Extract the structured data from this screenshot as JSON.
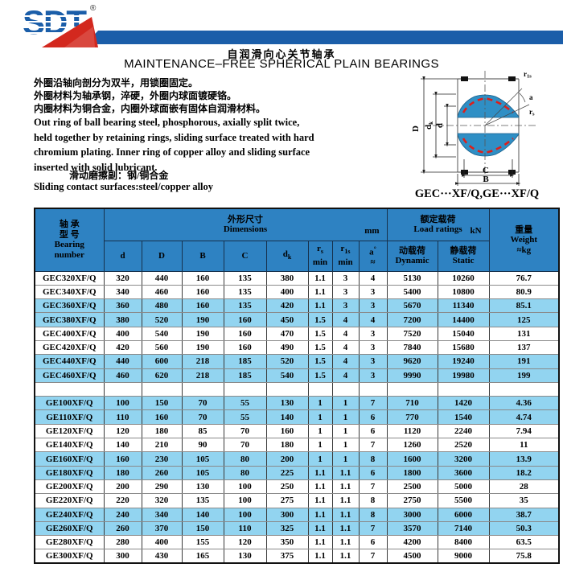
{
  "colors": {
    "bar_blue": "#1b5ea9",
    "header_blue": "#2e82c2",
    "row_highlight_blue": "#92d4f0",
    "logo_red": "#d3281e",
    "diagram_blue": "#2f8fc5",
    "lubricant_red": "#dd1f1a"
  },
  "logo": {
    "text": "SDT",
    "reg": "®"
  },
  "title": {
    "zh": "自润滑向心关节轴承",
    "en": "MAINTENANCE–FREE SPHERICAL PLAIN BEARINGS"
  },
  "description": {
    "zh_lines": [
      "外圈沿轴向剖分为双半，用锁圈固定。",
      "外圈材料为轴承钢，淬硬，外圈内球面镀硬铬。",
      "内圈材料为铜合金，内圈外球面嵌有固体自润滑材料。"
    ],
    "en_text": "Out ring of ball bearing steel, phosphorous, axially split twice, held together by retaining rings, sliding surface treated with hard chromium plating. Inner ring of copper alloy and sliding surface inserted with solid lubricant.",
    "contact_zh": "滑动磨擦副：钢/铜合金",
    "contact_en": "Sliding contact surfaces:steel/copper alloy"
  },
  "diagram": {
    "caption": "GEC···XF/Q,GE···XF/Q",
    "labels": {
      "D": "D",
      "dk_main": "d",
      "dk_sub": "k",
      "d": "d",
      "B": "B",
      "C": "C",
      "rs_main": "r",
      "rs_sub": "s",
      "r1s_main": "r",
      "r1s_sub": "1s",
      "a": "a"
    }
  },
  "table": {
    "header": {
      "bearing": {
        "zh1": "轴 承",
        "zh2": "型 号",
        "en1": "Bearing",
        "en2": "number"
      },
      "dims": {
        "zh": "外形尺寸",
        "en": "Dimensions",
        "unit": "mm"
      },
      "load": {
        "zh": "额定载荷",
        "en": "Load ratings",
        "unit": "kN"
      },
      "weight": {
        "zh": "重量",
        "en": "Weight",
        "unit": "≈kg"
      },
      "sub": {
        "d": "d",
        "D": "D",
        "B": "B",
        "C": "C",
        "dk_main": "d",
        "dk_sub": "k",
        "rs_main": "r",
        "rs_sub": "s",
        "r1s_main": "r",
        "r1s_sub": "1s",
        "min": "min",
        "a_main": "a",
        "a_sup": "°",
        "a_approx": "≈",
        "dyn_zh": "动载荷",
        "dyn_en": "Dynamic",
        "sta_zh": "静载荷",
        "sta_en": "Static"
      }
    },
    "rows": [
      {
        "hl": false,
        "cells": [
          "GEC320XF/Q",
          "320",
          "440",
          "160",
          "135",
          "380",
          "1.1",
          "3",
          "4",
          "5130",
          "10260",
          "76.7"
        ]
      },
      {
        "hl": false,
        "cells": [
          "GEC340XF/Q",
          "340",
          "460",
          "160",
          "135",
          "400",
          "1.1",
          "3",
          "3",
          "5400",
          "10800",
          "80.9"
        ]
      },
      {
        "hl": true,
        "cells": [
          "GEC360XF/Q",
          "360",
          "480",
          "160",
          "135",
          "420",
          "1.1",
          "3",
          "3",
          "5670",
          "11340",
          "85.1"
        ]
      },
      {
        "hl": true,
        "cells": [
          "GEC380XF/Q",
          "380",
          "520",
          "190",
          "160",
          "450",
          "1.5",
          "4",
          "4",
          "7200",
          "14400",
          "125"
        ]
      },
      {
        "hl": false,
        "cells": [
          "GEC400XF/Q",
          "400",
          "540",
          "190",
          "160",
          "470",
          "1.5",
          "4",
          "3",
          "7520",
          "15040",
          "131"
        ]
      },
      {
        "hl": false,
        "cells": [
          "GEC420XF/Q",
          "420",
          "560",
          "190",
          "160",
          "490",
          "1.5",
          "4",
          "3",
          "7840",
          "15680",
          "137"
        ]
      },
      {
        "hl": true,
        "cells": [
          "GEC440XF/Q",
          "440",
          "600",
          "218",
          "185",
          "520",
          "1.5",
          "4",
          "3",
          "9620",
          "19240",
          "191"
        ]
      },
      {
        "hl": true,
        "cells": [
          "GEC460XF/Q",
          "460",
          "620",
          "218",
          "185",
          "540",
          "1.5",
          "4",
          "3",
          "9990",
          "19980",
          "199"
        ]
      },
      {
        "hl": false,
        "cells": [
          "",
          "",
          "",
          "",
          "",
          "",
          "",
          "",
          "",
          "",
          "",
          ""
        ]
      },
      {
        "hl": true,
        "cells": [
          "GE100XF/Q",
          "100",
          "150",
          "70",
          "55",
          "130",
          "1",
          "1",
          "7",
          "710",
          "1420",
          "4.36"
        ]
      },
      {
        "hl": true,
        "cells": [
          "GE110XF/Q",
          "110",
          "160",
          "70",
          "55",
          "140",
          "1",
          "1",
          "6",
          "770",
          "1540",
          "4.74"
        ]
      },
      {
        "hl": false,
        "cells": [
          "GE120XF/Q",
          "120",
          "180",
          "85",
          "70",
          "160",
          "1",
          "1",
          "6",
          "1120",
          "2240",
          "7.94"
        ]
      },
      {
        "hl": false,
        "cells": [
          "GE140XF/Q",
          "140",
          "210",
          "90",
          "70",
          "180",
          "1",
          "1",
          "7",
          "1260",
          "2520",
          "11"
        ]
      },
      {
        "hl": true,
        "cells": [
          "GE160XF/Q",
          "160",
          "230",
          "105",
          "80",
          "200",
          "1",
          "1",
          "8",
          "1600",
          "3200",
          "13.9"
        ]
      },
      {
        "hl": true,
        "cells": [
          "GE180XF/Q",
          "180",
          "260",
          "105",
          "80",
          "225",
          "1.1",
          "1.1",
          "6",
          "1800",
          "3600",
          "18.2"
        ]
      },
      {
        "hl": false,
        "cells": [
          "GE200XF/Q",
          "200",
          "290",
          "130",
          "100",
          "250",
          "1.1",
          "1.1",
          "7",
          "2500",
          "5000",
          "28"
        ]
      },
      {
        "hl": false,
        "cells": [
          "GE220XF/Q",
          "220",
          "320",
          "135",
          "100",
          "275",
          "1.1",
          "1.1",
          "8",
          "2750",
          "5500",
          "35"
        ]
      },
      {
        "hl": true,
        "cells": [
          "GE240XF/Q",
          "240",
          "340",
          "140",
          "100",
          "300",
          "1.1",
          "1.1",
          "8",
          "3000",
          "6000",
          "38.7"
        ]
      },
      {
        "hl": true,
        "cells": [
          "GE260XF/Q",
          "260",
          "370",
          "150",
          "110",
          "325",
          "1.1",
          "1.1",
          "7",
          "3570",
          "7140",
          "50.3"
        ]
      },
      {
        "hl": false,
        "cells": [
          "GE280XF/Q",
          "280",
          "400",
          "155",
          "120",
          "350",
          "1.1",
          "1.1",
          "6",
          "4200",
          "8400",
          "63.5"
        ]
      },
      {
        "hl": false,
        "cells": [
          "GE300XF/Q",
          "300",
          "430",
          "165",
          "130",
          "375",
          "1.1",
          "1.1",
          "7",
          "4500",
          "9000",
          "75.8"
        ]
      }
    ]
  }
}
